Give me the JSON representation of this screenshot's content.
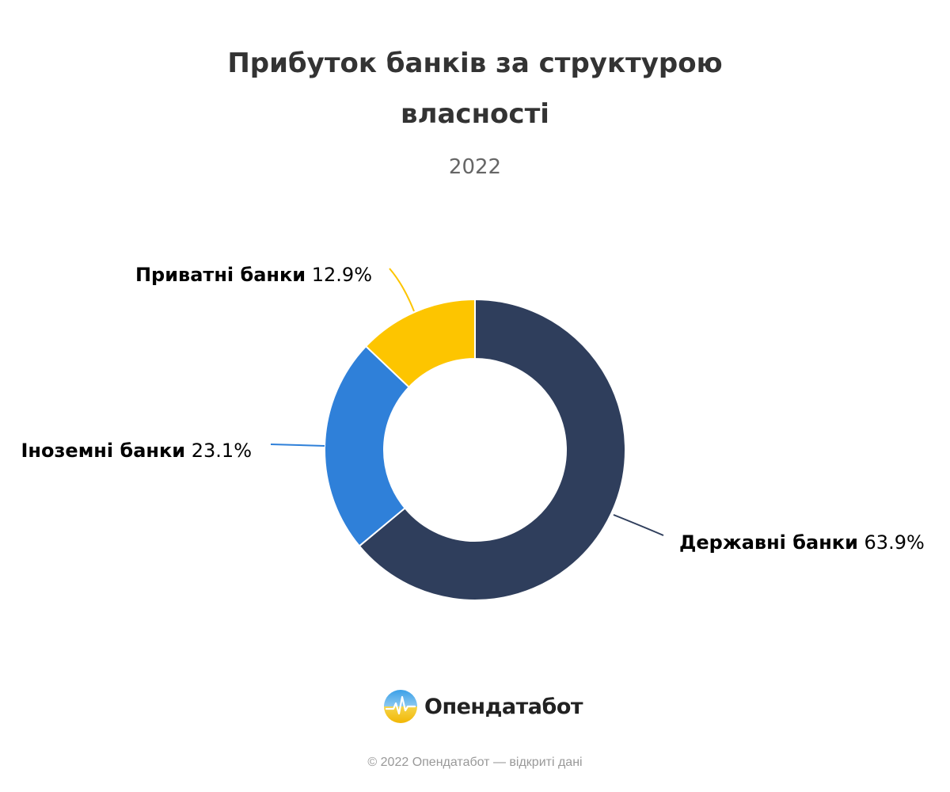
{
  "chart_data": {
    "type": "pie",
    "variant": "donut",
    "title": "Прибуток банків за структурою власності",
    "subtitle": "2022",
    "unit": "%",
    "slices": [
      {
        "name": "Державні банки",
        "value": 63.9,
        "value_label": "63.9%",
        "color": "#2f3e5c"
      },
      {
        "name": "Іноземні банки",
        "value": 23.1,
        "value_label": "23.1%",
        "color": "#2f80d9"
      },
      {
        "name": "Приватні банки",
        "value": 12.9,
        "value_label": "12.9%",
        "color": "#fdc500"
      }
    ]
  },
  "branding": {
    "logo_text": "Опендатабот",
    "logo_icon": "opendatabot-logo-icon",
    "copyright": "© 2022 Опендатабот — відкриті дані"
  }
}
